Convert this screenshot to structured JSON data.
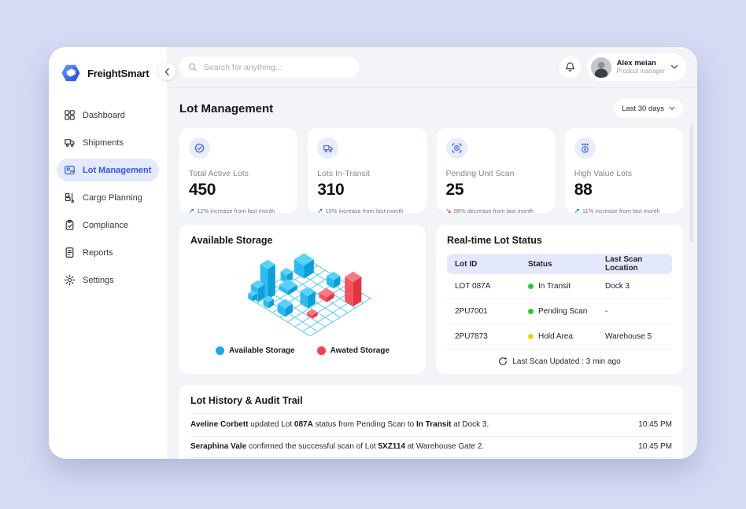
{
  "brand": {
    "name": "FreightSmart"
  },
  "sidebar": {
    "items": [
      {
        "label": "Dashboard",
        "active": false
      },
      {
        "label": "Shipments",
        "active": false
      },
      {
        "label": "Lot Management",
        "active": true
      },
      {
        "label": "Cargo Planning",
        "active": false
      },
      {
        "label": "Compliance",
        "active": false
      },
      {
        "label": "Reports",
        "active": false
      },
      {
        "label": "Settings",
        "active": false
      }
    ]
  },
  "topbar": {
    "search_placeholder": "Search for anything...",
    "user": {
      "name": "Alex meian",
      "role": "Prodcut manager"
    }
  },
  "page": {
    "title": "Lot Management",
    "date_filter": "Last 30 days"
  },
  "stats": [
    {
      "label": "Total Active Lots",
      "value": "450",
      "arrow": "↗",
      "direction": "up",
      "trend_text": "12% increase from last month"
    },
    {
      "label": "Lots In-Transit",
      "value": "310",
      "arrow": "↗",
      "direction": "up",
      "trend_text": "10% increase from last month"
    },
    {
      "label": "Pending Unit Scan",
      "value": "25",
      "arrow": "↘",
      "direction": "down",
      "trend_text": "08% decrease from last month"
    },
    {
      "label": "High Value Lots",
      "value": "88",
      "arrow": "↗",
      "direction": "up",
      "trend_text": "11% increase from last month"
    }
  ],
  "storage_card": {
    "title": "Available Storage"
  },
  "lot_status": {
    "title": "Real-time Lot Status",
    "columns": [
      "Lot ID",
      "Status",
      "Last Scan Location"
    ],
    "rows": [
      {
        "lot_id": "LOT 087A",
        "status": "In Transit",
        "dot_color": "#2BC836",
        "location": "Dock 3"
      },
      {
        "lot_id": "2PU7001",
        "status": "Pending Scan",
        "dot_color": "#2BC836",
        "location": "-"
      },
      {
        "lot_id": "2PU7873",
        "status": "Hold Area",
        "dot_color": "#E6D51A",
        "location": "Warehouse 5"
      }
    ],
    "footer": "Last Scan Updated : 3 min ago"
  },
  "audit": {
    "title": "Lot History & Audit Trail",
    "entries": [
      {
        "b1": "Aveline Corbett",
        "t1": " updated Lot ",
        "b2": "087A",
        "t2": " status from Pending Scan to ",
        "b3": "In Transit",
        "t3": " at Dock 3.",
        "time": "10:45 PM"
      },
      {
        "b1": "Seraphina Vale",
        "t1": " confirmed the successful scan of Lot ",
        "b2": "5XZ114",
        "t2": " at Warehouse Gate 2.",
        "b3": "",
        "t3": "",
        "time": "10:45 PM"
      }
    ]
  },
  "chart_data": {
    "type": "isometric_storage_grid",
    "title": "Available Storage",
    "grid": {
      "cols": 8,
      "rows": 8
    },
    "legend": [
      {
        "label": "Available Storage",
        "color": "#19AAEC"
      },
      {
        "label": "Awated Storage",
        "color": "#F0424E"
      }
    ],
    "palette": {
      "blue": {
        "top": "#5AD1F7",
        "left": "#2ABCEF",
        "right": "#0E9ED8"
      },
      "red": {
        "top": "#F87A82",
        "left": "#F4525C",
        "right": "#E23440"
      },
      "grid_line": "#46C4F2"
    },
    "boxes": [
      {
        "c": 0.2,
        "r": 1.0,
        "s": 1.3,
        "h": 1.4,
        "color": "blue"
      },
      {
        "c": 0.0,
        "r": 3.1,
        "s": 0.8,
        "h": 0.8,
        "color": "blue"
      },
      {
        "c": 0.3,
        "r": 5.9,
        "s": 1.0,
        "h": 3.2,
        "color": "blue"
      },
      {
        "c": 0.0,
        "r": 6.9,
        "s": 0.9,
        "h": 1.4,
        "color": "blue"
      },
      {
        "c": -0.1,
        "r": 7.5,
        "s": 0.6,
        "h": 0.55,
        "color": "blue"
      },
      {
        "c": 1.6,
        "r": 7.1,
        "s": 0.7,
        "h": 0.65,
        "color": "blue"
      },
      {
        "c": 1.0,
        "r": 3.9,
        "s": 1.2,
        "h": 0.5,
        "color": "blue"
      },
      {
        "c": 3.3,
        "r": 6.6,
        "s": 1.0,
        "h": 0.9,
        "color": "blue"
      },
      {
        "c": 3.9,
        "r": 4.2,
        "s": 1.0,
        "h": 1.3,
        "color": "blue"
      },
      {
        "c": 3.6,
        "r": 0.5,
        "s": 0.9,
        "h": 0.9,
        "color": "blue"
      },
      {
        "c": 4.5,
        "r": 2.3,
        "s": 1.0,
        "h": 0.5,
        "color": "red"
      },
      {
        "c": 6.6,
        "r": 0.9,
        "s": 1.1,
        "h": 2.6,
        "color": "red"
      },
      {
        "c": 5.6,
        "r": 5.3,
        "s": 0.7,
        "h": 0.35,
        "color": "red"
      }
    ]
  }
}
